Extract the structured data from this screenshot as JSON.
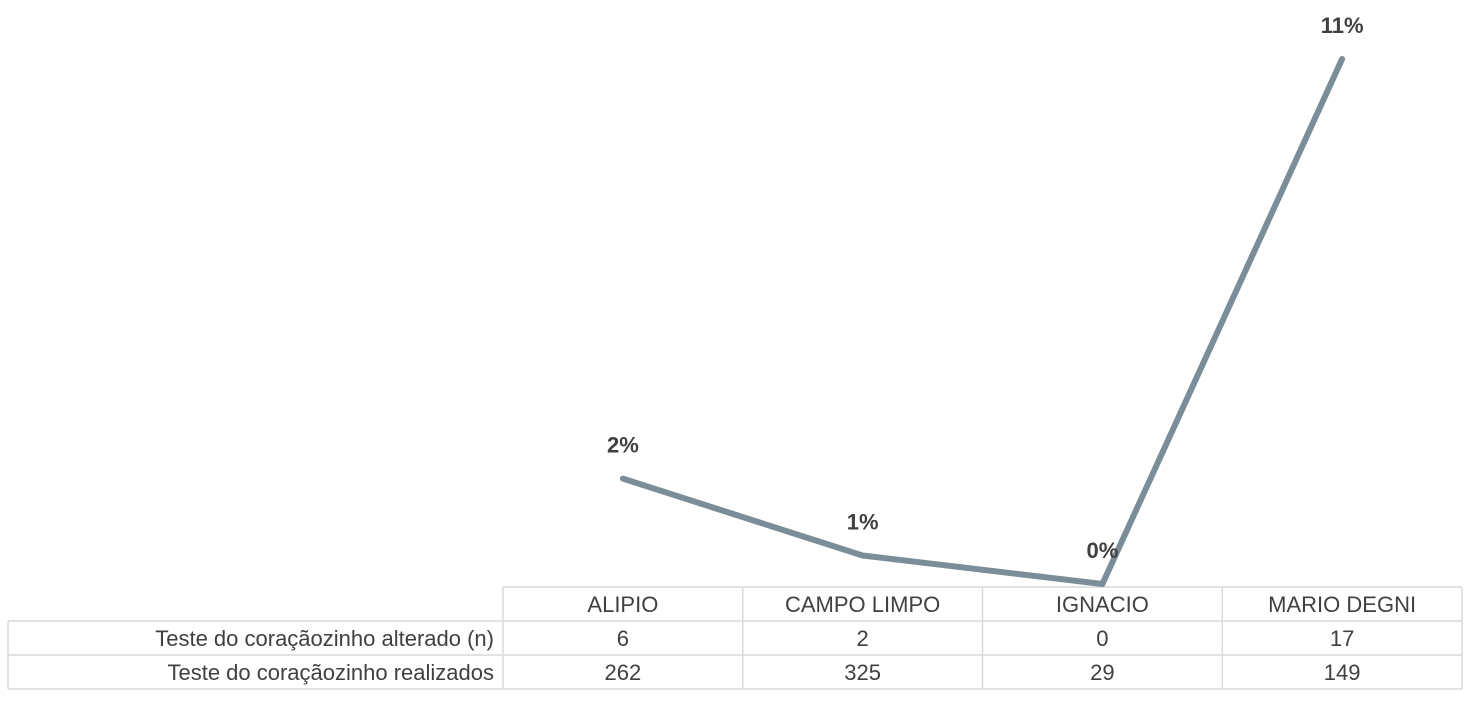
{
  "chart_data": {
    "type": "line",
    "title": "",
    "xlabel": "",
    "ylabel": "",
    "categories": [
      "ALIPIO",
      "CAMPO LIMPO",
      "IGNACIO",
      "MARIO DEGNI"
    ],
    "series": [
      {
        "values": [
          0.0229,
          0.0062,
          0.0,
          0.1141
        ],
        "data_labels": [
          "2%",
          "1%",
          "0%",
          "11%"
        ],
        "color": "#7a8d99"
      }
    ],
    "ylim": [
      0,
      0.12
    ],
    "grid": false,
    "legend": "none",
    "table": {
      "rows": [
        {
          "label": "Teste do coraçãozinho alterado (n)",
          "values": [
            "6",
            "2",
            "0",
            "17"
          ]
        },
        {
          "label": "Teste do coraçãozinho realizados",
          "values": [
            "262",
            "325",
            "29",
            "149"
          ]
        }
      ]
    }
  }
}
